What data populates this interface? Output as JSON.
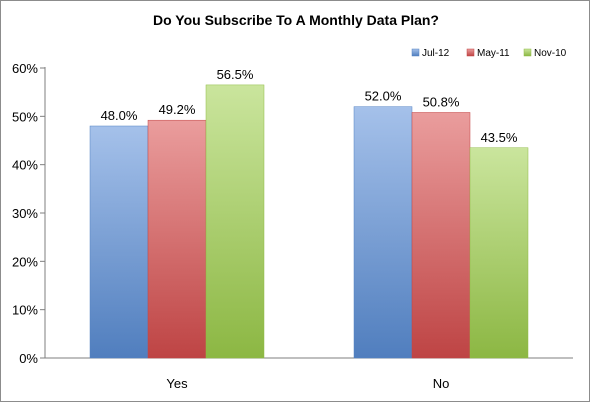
{
  "chart_data": {
    "type": "bar",
    "title": "Do You Subscribe To A Monthly Data Plan?",
    "categories": [
      "Yes",
      "No"
    ],
    "series": [
      {
        "name": "Jul-12",
        "values": [
          48.0,
          52.0
        ],
        "labels": [
          "48.0%",
          "52.0%"
        ],
        "color": "#5b8fd8"
      },
      {
        "name": "May-11",
        "values": [
          49.2,
          50.8
        ],
        "labels": [
          "49.2%",
          "50.8%"
        ],
        "color": "#d84d4d"
      },
      {
        "name": "Nov-10",
        "values": [
          56.5,
          43.5
        ],
        "labels": [
          "56.5%",
          "43.5%"
        ],
        "color": "#9fd04c"
      }
    ],
    "ylim": [
      0,
      60
    ],
    "yticks": [
      0,
      10,
      20,
      30,
      40,
      50,
      60
    ],
    "ytick_labels": [
      "0%",
      "10%",
      "20%",
      "30%",
      "40%",
      "50%",
      "60%"
    ],
    "grid": false,
    "legend": "top-right"
  }
}
